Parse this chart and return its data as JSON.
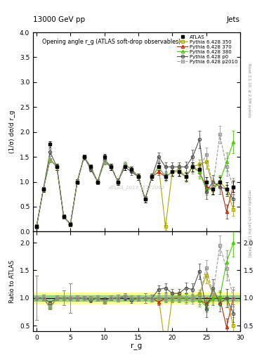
{
  "title_top": "13000 GeV pp",
  "title_right": "Jets",
  "plot_title": "Opening angle r_g (ATLAS soft-drop observables)",
  "ylabel_main": "(1/σ) dσ/d r_g",
  "ylabel_ratio": "Ratio to ATLAS",
  "xlabel": "r_g",
  "watermark": "ATLAS_2019_I1772062",
  "right_label_top": "Rivet 3.1.10, ≥ 2.5M events",
  "right_label_bot": "mcplots.cern.ch [arXiv:1306.3436]",
  "ylim_main": [
    0,
    4
  ],
  "ylim_ratio": [
    0.4,
    2.2
  ],
  "xdata": [
    0,
    1,
    2,
    3,
    4,
    5,
    6,
    7,
    8,
    9,
    10,
    11,
    12,
    13,
    14,
    15,
    16,
    17,
    18,
    19,
    20,
    21,
    22,
    23,
    24,
    25,
    26,
    27,
    28,
    29
  ],
  "atlas_y": [
    0.1,
    0.85,
    1.75,
    1.3,
    0.3,
    0.15,
    1.0,
    1.5,
    1.3,
    1.0,
    1.5,
    1.3,
    1.0,
    1.3,
    1.25,
    1.1,
    0.65,
    1.1,
    1.3,
    1.1,
    1.2,
    1.2,
    1.1,
    1.3,
    1.25,
    1.0,
    0.85,
    1.0,
    0.85,
    0.9
  ],
  "atlas_yerr": [
    0.04,
    0.05,
    0.06,
    0.06,
    0.04,
    0.04,
    0.05,
    0.05,
    0.05,
    0.05,
    0.06,
    0.06,
    0.06,
    0.06,
    0.06,
    0.06,
    0.06,
    0.06,
    0.07,
    0.07,
    0.08,
    0.08,
    0.08,
    0.09,
    0.09,
    0.09,
    0.09,
    0.09,
    0.09,
    0.11
  ],
  "p350_y": [
    0.1,
    0.85,
    1.45,
    1.3,
    0.3,
    0.15,
    1.0,
    1.5,
    1.3,
    1.0,
    1.4,
    1.3,
    1.0,
    1.35,
    1.25,
    1.1,
    0.65,
    1.1,
    1.3,
    0.1,
    1.2,
    1.25,
    1.1,
    1.3,
    1.35,
    1.4,
    0.9,
    1.0,
    0.85,
    0.45
  ],
  "p350_yerr": [
    0.04,
    0.05,
    0.06,
    0.06,
    0.04,
    0.04,
    0.05,
    0.05,
    0.05,
    0.05,
    0.06,
    0.06,
    0.06,
    0.06,
    0.06,
    0.06,
    0.06,
    0.07,
    0.07,
    0.07,
    0.08,
    0.09,
    0.09,
    0.09,
    0.09,
    0.14,
    0.11,
    0.11,
    0.14,
    0.14
  ],
  "p370_y": [
    0.1,
    0.85,
    1.45,
    1.3,
    0.3,
    0.15,
    1.0,
    1.5,
    1.3,
    1.0,
    1.4,
    1.3,
    1.0,
    1.35,
    1.25,
    1.1,
    0.65,
    1.1,
    1.2,
    1.1,
    1.2,
    1.2,
    1.1,
    1.3,
    1.2,
    0.9,
    0.85,
    1.0,
    0.4,
    0.9
  ],
  "p370_yerr": [
    0.04,
    0.05,
    0.06,
    0.06,
    0.04,
    0.04,
    0.05,
    0.05,
    0.05,
    0.05,
    0.06,
    0.06,
    0.06,
    0.06,
    0.06,
    0.06,
    0.06,
    0.07,
    0.07,
    0.07,
    0.08,
    0.08,
    0.08,
    0.09,
    0.09,
    0.11,
    0.11,
    0.11,
    0.14,
    0.14
  ],
  "p380_y": [
    0.1,
    0.85,
    1.45,
    1.3,
    0.3,
    0.15,
    1.0,
    1.5,
    1.3,
    1.0,
    1.4,
    1.3,
    1.0,
    1.35,
    1.25,
    1.1,
    0.65,
    1.1,
    1.3,
    1.1,
    1.2,
    1.2,
    1.1,
    1.3,
    1.2,
    0.85,
    0.85,
    1.0,
    1.4,
    1.8
  ],
  "p380_yerr": [
    0.04,
    0.05,
    0.06,
    0.06,
    0.04,
    0.04,
    0.05,
    0.05,
    0.05,
    0.05,
    0.06,
    0.06,
    0.06,
    0.06,
    0.06,
    0.06,
    0.06,
    0.07,
    0.07,
    0.07,
    0.08,
    0.08,
    0.08,
    0.09,
    0.14,
    0.11,
    0.11,
    0.14,
    0.18,
    0.23
  ],
  "pp0_y": [
    0.1,
    0.85,
    1.6,
    1.3,
    0.3,
    0.15,
    1.0,
    1.5,
    1.25,
    1.0,
    1.45,
    1.3,
    1.0,
    1.3,
    1.2,
    1.1,
    0.65,
    1.1,
    1.5,
    1.3,
    1.3,
    1.3,
    1.3,
    1.5,
    1.85,
    0.8,
    1.0,
    0.9,
    0.85,
    0.65
  ],
  "pp0_yerr": [
    0.04,
    0.05,
    0.06,
    0.06,
    0.04,
    0.04,
    0.05,
    0.05,
    0.05,
    0.05,
    0.06,
    0.06,
    0.06,
    0.06,
    0.06,
    0.06,
    0.06,
    0.07,
    0.09,
    0.09,
    0.09,
    0.09,
    0.11,
    0.14,
    0.18,
    0.14,
    0.14,
    0.14,
    0.14,
    0.14
  ],
  "pp2010_y": [
    0.1,
    0.85,
    1.45,
    1.3,
    0.3,
    0.15,
    1.0,
    1.5,
    1.3,
    1.0,
    1.4,
    1.3,
    1.0,
    1.35,
    1.25,
    1.1,
    0.65,
    1.1,
    1.3,
    1.1,
    1.2,
    1.2,
    1.1,
    1.3,
    1.25,
    1.55,
    0.9,
    1.95,
    1.3,
    0.9
  ],
  "pp2010_yerr": [
    0.04,
    0.05,
    0.06,
    0.06,
    0.04,
    0.04,
    0.05,
    0.05,
    0.05,
    0.05,
    0.06,
    0.06,
    0.06,
    0.06,
    0.06,
    0.06,
    0.06,
    0.07,
    0.09,
    0.09,
    0.09,
    0.09,
    0.11,
    0.14,
    0.14,
    0.14,
    0.14,
    0.18,
    0.18,
    0.18
  ],
  "color_atlas": "#000000",
  "color_p350": "#aaaa00",
  "color_p370": "#cc2200",
  "color_p380": "#44cc00",
  "color_pp0": "#555555",
  "color_pp2010": "#999999"
}
